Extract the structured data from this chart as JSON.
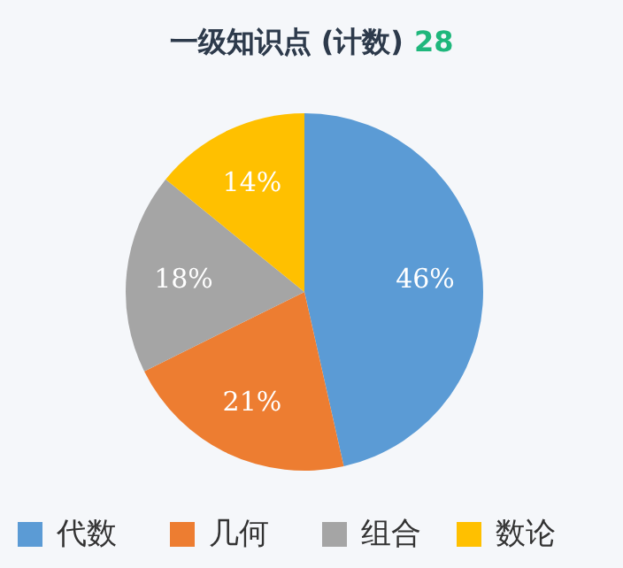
{
  "chart_data": {
    "type": "pie",
    "title": "一级知识点 (计数)",
    "subtitle": "28",
    "categories": [
      "代数",
      "几何",
      "组合",
      "数论"
    ],
    "values": [
      46,
      21,
      18,
      14
    ],
    "colors": [
      "#5b9bd5",
      "#ed7d31",
      "#a5a5a5",
      "#ffc000"
    ],
    "value_labels": [
      "46%",
      "21%",
      "18%",
      "14%"
    ],
    "legend": "bottom"
  }
}
